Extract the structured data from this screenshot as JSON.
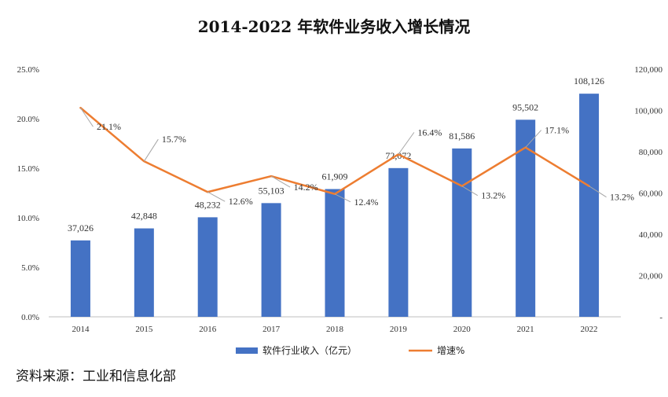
{
  "chart_data": {
    "type": "bar",
    "title": "2014-2022 年软件业务收入增长情况",
    "categories": [
      "2014",
      "2015",
      "2016",
      "2017",
      "2018",
      "2019",
      "2020",
      "2021",
      "2022"
    ],
    "series": [
      {
        "name": "软件行业收入（亿元）",
        "type": "bar",
        "axis": "right",
        "color": "#4472C4",
        "values": [
          37026,
          42848,
          48232,
          55103,
          61909,
          72072,
          81586,
          95502,
          108126
        ],
        "labels": [
          "37,026",
          "42,848",
          "48,232",
          "55,103",
          "61,909",
          "72,072",
          "81,586",
          "95,502",
          "108,126"
        ]
      },
      {
        "name": "增速%",
        "type": "line",
        "axis": "left",
        "color": "#ED7D31",
        "values": [
          21.1,
          15.7,
          12.6,
          14.2,
          12.4,
          16.4,
          13.2,
          17.1,
          13.2
        ],
        "labels": [
          "21.1%",
          "15.7%",
          "12.6%",
          "14.2%",
          "12.4%",
          "16.4%",
          "13.2%",
          "17.1%",
          "13.2%"
        ]
      }
    ],
    "y_left": {
      "range": [
        0,
        25
      ],
      "ticks": [
        0,
        5,
        10,
        15,
        20,
        25
      ],
      "tick_labels": [
        "0.0%",
        "5.0%",
        "10.0%",
        "15.0%",
        "20.0%",
        "25.0%"
      ]
    },
    "y_right": {
      "range": [
        0,
        120000
      ],
      "ticks": [
        0,
        20000,
        40000,
        60000,
        80000,
        100000,
        120000
      ],
      "tick_labels": [
        "-",
        "20,000",
        "40,000",
        "60,000",
        "80,000",
        "100,000",
        "120,000"
      ]
    },
    "legend_position": "bottom",
    "grid": false
  },
  "source": "资料来源：工业和信息化部"
}
